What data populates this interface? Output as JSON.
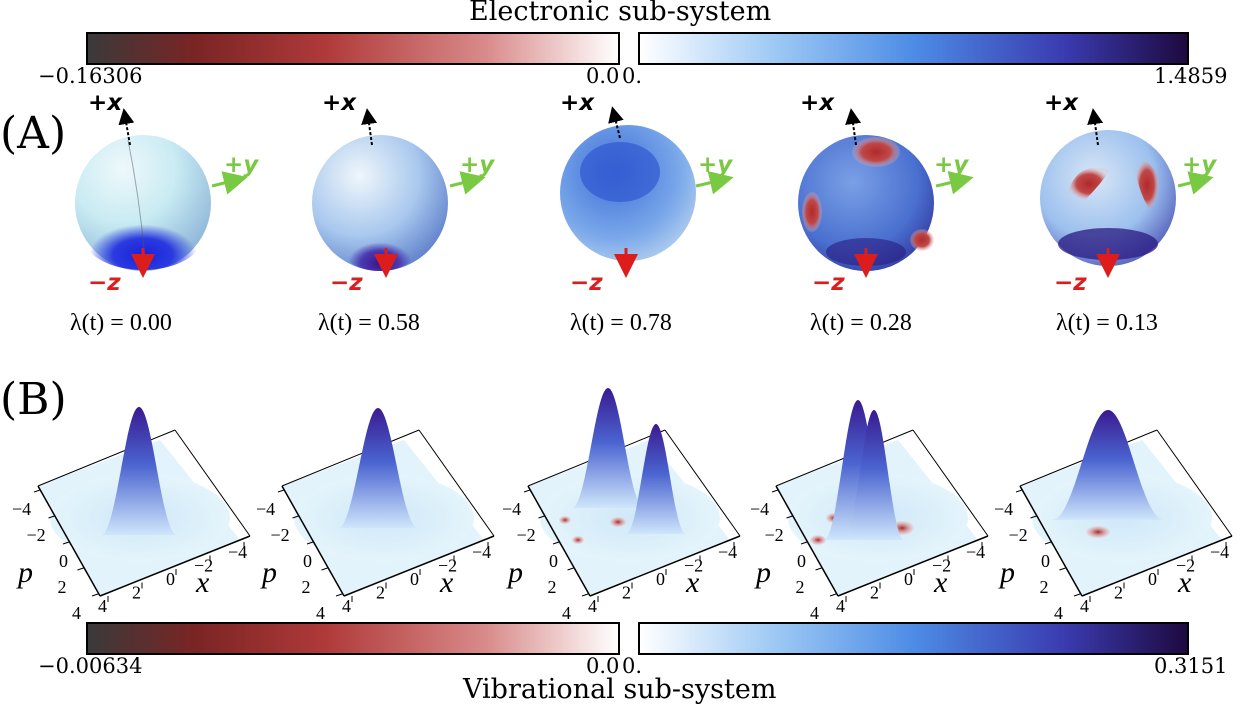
{
  "electronic": {
    "title": "Electronic sub-system",
    "min_label": "−0.16306",
    "zero_left": "0.0",
    "zero_right": "0.",
    "max_label": "1.4859"
  },
  "vibrational": {
    "title": "Vibrational sub-system",
    "min_label": "−0.00634",
    "zero_left": "0.0",
    "zero_right": "0.",
    "max_label": "0.3151"
  },
  "panels": {
    "a": "(A)",
    "b": "(B)"
  },
  "axes": {
    "x": "+x",
    "y": "+y",
    "z": "−z"
  },
  "lambda_symbol": "λ(t) = ",
  "snapshots": [
    {
      "lambda": "0.00",
      "trend": "up"
    },
    {
      "lambda": "0.58",
      "trend": "up"
    },
    {
      "lambda": "0.78",
      "trend": "up"
    },
    {
      "lambda": "0.28",
      "trend": "down"
    },
    {
      "lambda": "0.13",
      "trend": "down"
    }
  ],
  "wigner_axes": {
    "p_label": "p",
    "x_label": "x",
    "p_ticks": [
      "−4",
      "−2",
      "0",
      "2",
      "4"
    ],
    "x_ticks": [
      "4",
      "2",
      "0",
      "−2",
      "−4"
    ]
  },
  "colors": {
    "neg_dark": "#3a3a3a",
    "neg_mid": "#a5292b",
    "pos_light": "#cfe6fb",
    "pos_mid": "#4d8ce6",
    "pos_dark": "#220a45",
    "arrow_magenta": "#e223e2",
    "axis_green": "#7ac943",
    "axis_red": "#dd1c1c"
  }
}
